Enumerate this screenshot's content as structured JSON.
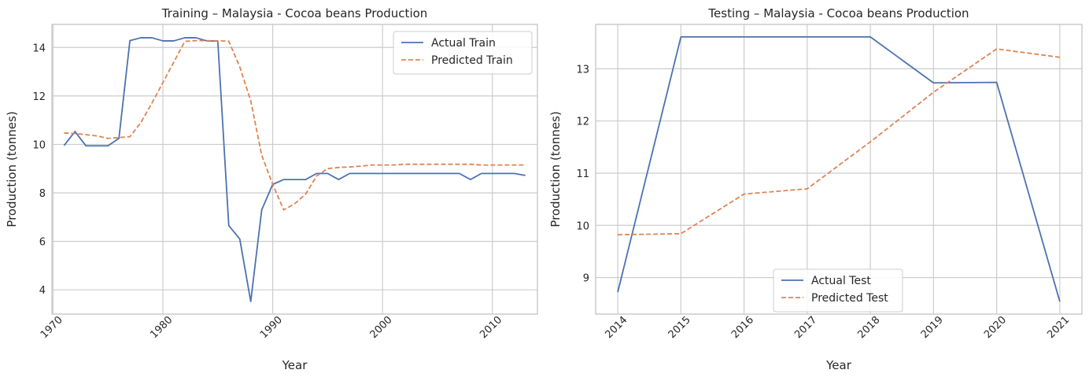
{
  "colors": {
    "actual": "#4c72b0",
    "predicted": "#dd8452",
    "grid": "#cccccc",
    "spine": "#cccccc"
  },
  "chart_data": [
    {
      "type": "line",
      "title": "Training – Malaysia - Cocoa beans Production",
      "xlabel": "Year",
      "ylabel": "Production (tonnes)",
      "xlim": [
        1969.9,
        2014.1
      ],
      "ylim": [
        3.0,
        14.95
      ],
      "xticks": [
        1970,
        1980,
        1990,
        2000,
        2010
      ],
      "xtick_labels": [
        "1970",
        "1980",
        "1990",
        "2000",
        "2010"
      ],
      "yticks": [
        4,
        6,
        8,
        10,
        12,
        14
      ],
      "ytick_labels": [
        "4",
        "6",
        "8",
        "10",
        "12",
        "14"
      ],
      "grid": true,
      "legend_position": "upper right",
      "series": [
        {
          "name": "Actual Train",
          "style": "solid",
          "x": [
            1971,
            1972,
            1973,
            1974,
            1975,
            1976,
            1977,
            1978,
            1979,
            1980,
            1981,
            1982,
            1983,
            1984,
            1985,
            1986,
            1987,
            1988,
            1989,
            1990,
            1991,
            1992,
            1993,
            1994,
            1995,
            1996,
            1997,
            1998,
            1999,
            2000,
            2001,
            2002,
            2003,
            2004,
            2005,
            2006,
            2007,
            2008,
            2009,
            2010,
            2011,
            2012,
            2013
          ],
          "values": [
            9.95,
            10.53,
            9.94,
            9.94,
            9.94,
            10.25,
            14.28,
            14.4,
            14.4,
            14.27,
            14.27,
            14.4,
            14.4,
            14.27,
            14.26,
            6.65,
            6.1,
            3.52,
            7.3,
            8.35,
            8.55,
            8.55,
            8.55,
            8.8,
            8.8,
            8.55,
            8.8,
            8.8,
            8.8,
            8.8,
            8.8,
            8.8,
            8.8,
            8.8,
            8.8,
            8.8,
            8.8,
            8.55,
            8.8,
            8.8,
            8.8,
            8.8,
            8.72
          ]
        },
        {
          "name": "Predicted Train",
          "style": "dashed",
          "x": [
            1971,
            1972,
            1973,
            1974,
            1975,
            1976,
            1977,
            1978,
            1979,
            1980,
            1981,
            1982,
            1983,
            1984,
            1985,
            1986,
            1987,
            1988,
            1989,
            1990,
            1991,
            1992,
            1993,
            1994,
            1995,
            1996,
            1997,
            1998,
            1999,
            2000,
            2001,
            2002,
            2003,
            2004,
            2005,
            2006,
            2007,
            2008,
            2009,
            2010,
            2011,
            2012,
            2013
          ],
          "values": [
            10.47,
            10.45,
            10.4,
            10.35,
            10.25,
            10.28,
            10.32,
            10.9,
            11.7,
            12.55,
            13.4,
            14.25,
            14.28,
            14.28,
            14.27,
            14.26,
            13.2,
            11.8,
            9.55,
            8.35,
            7.3,
            7.55,
            7.95,
            8.7,
            9.0,
            9.05,
            9.07,
            9.1,
            9.15,
            9.15,
            9.15,
            9.18,
            9.18,
            9.18,
            9.18,
            9.18,
            9.18,
            9.18,
            9.15,
            9.15,
            9.15,
            9.15,
            9.15
          ]
        }
      ]
    },
    {
      "type": "line",
      "title": "Testing – Malaysia - Cocoa beans Production",
      "xlabel": "Year",
      "ylabel": "Production (tonnes)",
      "xlim": [
        2013.65,
        2021.35
      ],
      "ylim": [
        8.3,
        13.85
      ],
      "xticks": [
        2014,
        2015,
        2016,
        2017,
        2018,
        2019,
        2020,
        2021
      ],
      "xtick_labels": [
        "2014",
        "2015",
        "2016",
        "2017",
        "2018",
        "2019",
        "2020",
        "2021"
      ],
      "yticks": [
        9,
        10,
        11,
        12,
        13
      ],
      "ytick_labels": [
        "9",
        "10",
        "11",
        "12",
        "13"
      ],
      "grid": true,
      "legend_position": "lower center",
      "series": [
        {
          "name": "Actual Test",
          "style": "solid",
          "x": [
            2014,
            2015,
            2016,
            2017,
            2018,
            2019,
            2020,
            2021
          ],
          "values": [
            8.72,
            13.61,
            13.61,
            13.61,
            13.61,
            12.73,
            12.74,
            8.54
          ]
        },
        {
          "name": "Predicted Test",
          "style": "dashed",
          "x": [
            2014,
            2015,
            2016,
            2017,
            2018,
            2019,
            2020,
            2021
          ],
          "values": [
            9.82,
            9.84,
            10.6,
            10.7,
            11.6,
            12.55,
            13.38,
            13.22
          ]
        }
      ]
    }
  ]
}
